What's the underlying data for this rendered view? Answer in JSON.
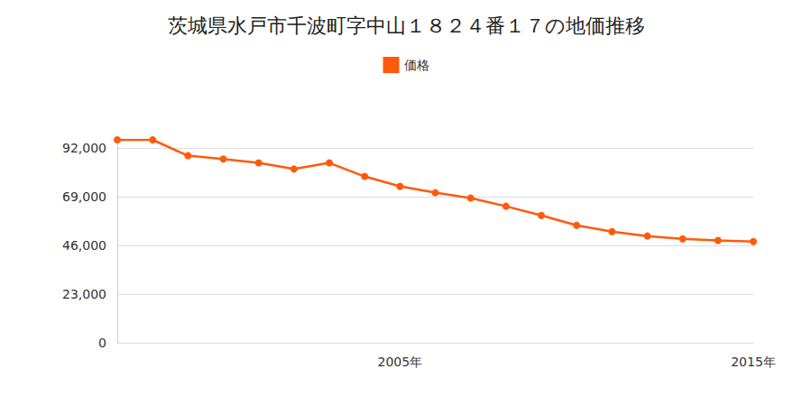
{
  "chart_data": {
    "type": "line",
    "title": "茨城県水戸市千波町字中山１８２４番１７の地価推移",
    "categories": [
      null,
      null,
      null,
      null,
      null,
      null,
      null,
      null,
      "2005年",
      null,
      null,
      null,
      null,
      null,
      null,
      null,
      null,
      null,
      "2015年"
    ],
    "series": [
      {
        "name": "価格",
        "color": "#ff5a0a",
        "marker": "circle",
        "values": [
          96000,
          96000,
          88500,
          86900,
          85100,
          82200,
          85100,
          78700,
          74000,
          71000,
          68500,
          64600,
          60300,
          55600,
          52600,
          50500,
          49200,
          48400,
          47900
        ]
      }
    ],
    "ylim": [
      0,
      96000
    ],
    "yticks": [
      0,
      {
        "value": 23000,
        "label": "23,000"
      },
      {
        "value": 46000,
        "label": "46,000"
      },
      {
        "value": 69000,
        "label": "69,000"
      },
      {
        "value": 92000,
        "label": "92,000"
      }
    ],
    "grid": true,
    "legend": "top"
  }
}
